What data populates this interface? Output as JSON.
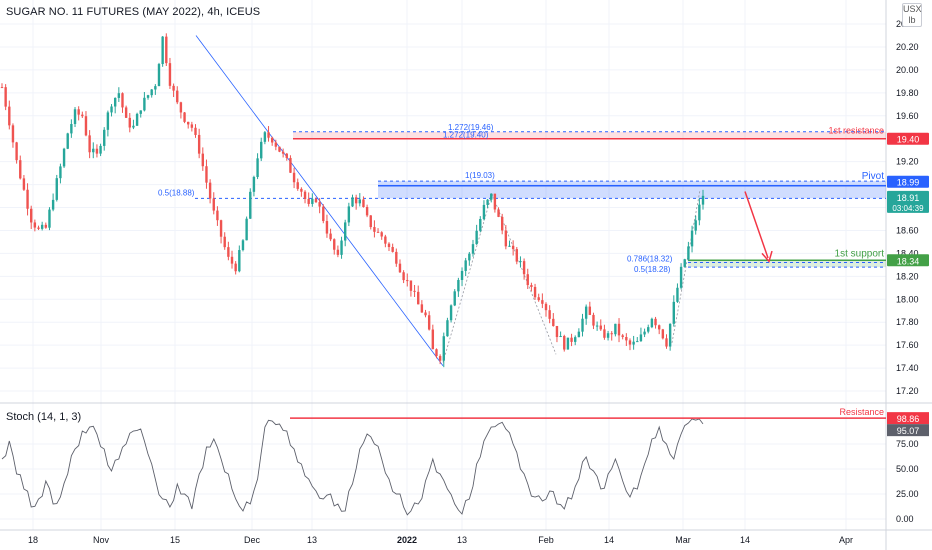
{
  "header": {
    "symbol_title": "SUGAR NO. 11 FUTURES (MAY 2022), 4h, ICEUS",
    "currency_top": "USX",
    "currency_bottom": "lb"
  },
  "stoch": {
    "title": "Stoch (14, 1, 3)"
  },
  "chart_data": [
    {
      "type": "candlestick",
      "title": "SUGAR NO. 11 FUTURES (MAY 2022), 4h, ICEUS",
      "ylim": [
        17.2,
        20.4
      ],
      "y_ticks": [
        "20.40",
        "20.20",
        "20.00",
        "19.80",
        "19.60",
        "19.40",
        "19.20",
        "19.00",
        "18.80",
        "18.60",
        "18.40",
        "18.20",
        "18.00",
        "17.80",
        "17.60",
        "17.40",
        "17.20"
      ],
      "x_ticks": [
        "18",
        "Nov",
        "15",
        "Dec",
        "13",
        "2022",
        "13",
        "Feb",
        "14",
        "Mar",
        "14",
        "Apr"
      ],
      "price_path": [
        19.85,
        19.55,
        19.2,
        18.95,
        18.7,
        18.6,
        18.62,
        18.9,
        19.15,
        19.45,
        19.62,
        19.6,
        19.3,
        19.25,
        19.5,
        19.72,
        19.8,
        19.55,
        19.5,
        19.68,
        19.78,
        19.88,
        20.28,
        19.9,
        19.7,
        19.58,
        19.5,
        19.3,
        19.02,
        18.75,
        18.55,
        18.35,
        18.28,
        18.5,
        18.9,
        19.25,
        19.43,
        19.4,
        19.3,
        19.2,
        19.05,
        18.95,
        18.8,
        18.88,
        18.7,
        18.5,
        18.35,
        18.7,
        18.88,
        18.85,
        18.7,
        18.6,
        18.55,
        18.45,
        18.35,
        18.2,
        18.1,
        17.95,
        17.85,
        17.55,
        17.5,
        17.85,
        18.1,
        18.25,
        18.4,
        18.6,
        18.8,
        18.9,
        18.7,
        18.5,
        18.4,
        18.3,
        18.15,
        18.05,
        18.0,
        17.85,
        17.7,
        17.6,
        17.65,
        17.75,
        17.9,
        17.8,
        17.7,
        17.68,
        17.75,
        17.65,
        17.6,
        17.62,
        17.72,
        17.85,
        17.75,
        17.62,
        17.95,
        18.25,
        18.45,
        18.7,
        18.91
      ],
      "last_price": "18.91",
      "countdown": "03:04:39",
      "fibonacci_labels": [
        "1.272(19.46)",
        "1.272(19.40)",
        "1(19.03)",
        "0.5(18.88)",
        "0.786(18.32)",
        "0.5(18.28)"
      ],
      "levels": [
        {
          "name": "1st resistance",
          "value": "19.40",
          "color": "#f23645"
        },
        {
          "name": "Pivot",
          "value": "18.99",
          "color": "#2962ff"
        },
        {
          "name": "1st support",
          "value": "18.34",
          "color": "#43a047"
        }
      ]
    },
    {
      "type": "line",
      "title": "Stoch (14, 1, 3)",
      "ylim": [
        -5,
        103
      ],
      "y_ticks": [
        "75.00",
        "50.00",
        "25.00",
        "0.00"
      ],
      "last_values": [
        "98.86",
        "95.07"
      ],
      "resistance_label": "Resistance",
      "values": [
        60,
        78,
        45,
        30,
        12,
        20,
        38,
        15,
        22,
        45,
        70,
        88,
        92,
        85,
        70,
        48,
        60,
        75,
        88,
        90,
        65,
        40,
        20,
        12,
        35,
        25,
        10,
        45,
        72,
        80,
        60,
        45,
        20,
        8,
        15,
        40,
        92,
        98,
        95,
        88,
        70,
        55,
        40,
        28,
        20,
        25,
        15,
        8,
        35,
        70,
        85,
        75,
        60,
        40,
        25,
        12,
        8,
        15,
        38,
        60,
        45,
        30,
        15,
        5,
        20,
        55,
        78,
        92,
        95,
        90,
        75,
        50,
        35,
        22,
        18,
        28,
        15,
        10,
        20,
        40,
        62,
        48,
        30,
        45,
        60,
        38,
        22,
        30,
        55,
        80,
        92,
        75,
        60,
        85,
        96,
        98.86,
        95.07
      ]
    }
  ],
  "colors": {
    "up": "#26a69a",
    "down": "#ef5350",
    "resistance": "#f23645",
    "pivot": "#2962ff",
    "support": "#43a047",
    "grid": "#f0f3fa",
    "axis_text": "#131722"
  }
}
